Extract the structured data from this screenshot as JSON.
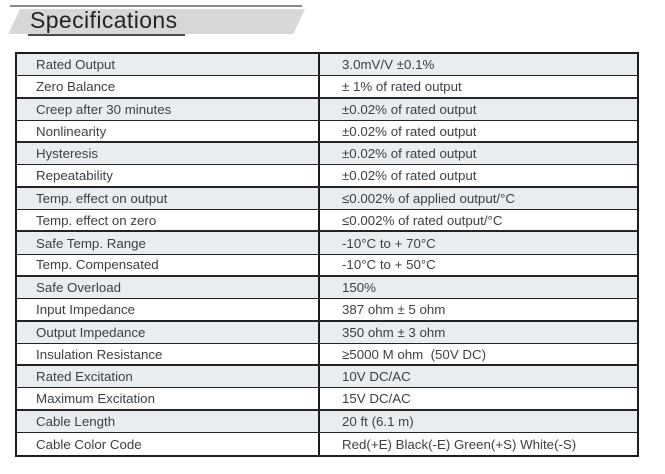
{
  "header": {
    "title": "Specifications"
  },
  "table": {
    "rows": [
      {
        "name": "Rated Output",
        "value": "3.0mV/V ±0.1%"
      },
      {
        "name": "Zero Balance",
        "value": "± 1% of rated output"
      },
      {
        "name": "Creep after 30 minutes",
        "value": "±0.02% of rated output"
      },
      {
        "name": "Nonlinearity",
        "value": "±0.02% of rated output"
      },
      {
        "name": "Hysteresis",
        "value": "±0.02% of rated output"
      },
      {
        "name": "Repeatability",
        "value": "±0.02% of rated output"
      },
      {
        "name": "Temp. effect on output",
        "value": "≤0.002% of applied output/°C"
      },
      {
        "name": "Temp. effect on zero",
        "value": "≤0.002% of rated output/°C"
      },
      {
        "name": "Safe Temp. Range",
        "value": "-10°C to + 70°C"
      },
      {
        "name": "Temp. Compensated",
        "value": "-10°C to + 50°C"
      },
      {
        "name": "Safe Overload",
        "value": "150%"
      },
      {
        "name": "Input Impedance",
        "value": "387 ohm ± 5 ohm"
      },
      {
        "name": "Output Impedance",
        "value": "350 ohm ± 3 ohm"
      },
      {
        "name": "Insulation Resistance",
        "value": "≥5000 M ohm  (50V DC)"
      },
      {
        "name": "Rated Excitation",
        "value": "10V DC/AC"
      },
      {
        "name": "Maximum Excitation",
        "value": "15V DC/AC"
      },
      {
        "name": "Cable Length",
        "value": "20 ft (6.1 m)"
      },
      {
        "name": "Cable Color Code",
        "value": "Red(+E) Black(-E) Green(+S) White(-S)"
      }
    ],
    "colors": {
      "row_tint": "#e9edf0",
      "border": "#1d1d1f",
      "text": "#3c4046",
      "header_shape": "#d7d7d7"
    }
  }
}
